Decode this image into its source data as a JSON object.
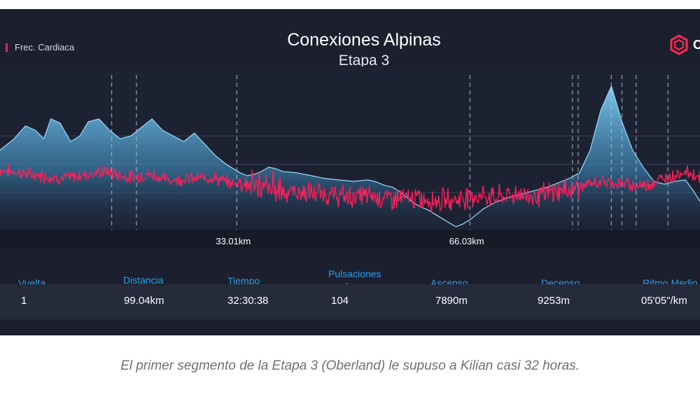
{
  "chart_data": {
    "type": "area",
    "title": "Conexiones Alpinas",
    "subtitle": "Etapa 3",
    "xlim": [
      0,
      99.04
    ],
    "x_tick_labels": [
      "33.01km",
      "66.03km"
    ],
    "grid": "horizontal",
    "legend_position": "top-left",
    "series": [
      {
        "name": "",
        "kind": "elevation-area",
        "x": [
          0,
          2,
          3.6,
          5,
          6.2,
          7.2,
          8.5,
          10,
          11.3,
          12.5,
          14,
          15.5,
          17,
          18.5,
          20,
          21.5,
          23,
          24.5,
          26,
          27.5,
          29,
          30.5,
          32,
          33,
          34,
          35,
          36,
          37,
          38,
          39,
          40,
          42,
          44,
          46,
          48,
          50,
          52,
          53,
          54.5,
          55.5,
          56.5,
          57.5,
          58.5,
          59.5,
          60.5,
          61.5,
          62.5,
          63.5,
          64.5,
          65.5,
          66.5,
          67.5,
          68.5,
          70,
          71.5,
          73,
          74.5,
          76,
          77.5,
          79,
          80.5,
          82,
          83.5,
          85,
          86.5,
          88,
          89.5,
          91,
          92.5,
          94,
          95.5,
          97,
          98,
          99.04
        ],
        "values": [
          0.5,
          0.58,
          0.67,
          0.64,
          0.58,
          0.72,
          0.69,
          0.56,
          0.6,
          0.7,
          0.72,
          0.64,
          0.58,
          0.6,
          0.66,
          0.72,
          0.64,
          0.6,
          0.56,
          0.62,
          0.54,
          0.46,
          0.4,
          0.37,
          0.34,
          0.32,
          0.33,
          0.35,
          0.38,
          0.37,
          0.35,
          0.34,
          0.32,
          0.3,
          0.29,
          0.28,
          0.29,
          0.28,
          0.25,
          0.24,
          0.21,
          0.17,
          0.13,
          0.1,
          0.08,
          0.05,
          0.02,
          -0.01,
          -0.04,
          -0.02,
          0.01,
          0.05,
          0.09,
          0.13,
          0.16,
          0.18,
          0.2,
          0.22,
          0.24,
          0.27,
          0.3,
          0.34,
          0.5,
          0.78,
          0.95,
          0.7,
          0.5,
          0.38,
          0.28,
          0.26,
          0.28,
          0.29,
          0.22,
          0.14
        ]
      },
      {
        "name": "Frec. Cardiaca",
        "kind": "heart-rate-line",
        "color": "#ff1f5a",
        "x": [
          0,
          3,
          6,
          9,
          12,
          15,
          18,
          21,
          24,
          27,
          30,
          33,
          34,
          36,
          38,
          40,
          43,
          46,
          49,
          52,
          55,
          58,
          61,
          64,
          67,
          70,
          73,
          76,
          79,
          82,
          85,
          88,
          91,
          94,
          97,
          99.04
        ],
        "values": [
          0.36,
          0.34,
          0.32,
          0.3,
          0.33,
          0.35,
          0.31,
          0.33,
          0.29,
          0.3,
          0.31,
          0.26,
          0.28,
          0.24,
          0.22,
          0.21,
          0.2,
          0.19,
          0.17,
          0.18,
          0.16,
          0.16,
          0.15,
          0.15,
          0.18,
          0.17,
          0.19,
          0.18,
          0.21,
          0.24,
          0.28,
          0.26,
          0.25,
          0.3,
          0.35,
          0.31
        ]
      }
    ]
  },
  "chart": {
    "x_ticks": [
      {
        "label": "33.01km",
        "x": 33.01
      },
      {
        "label": "66.03km",
        "x": 66.03
      }
    ],
    "lap_markers": [
      15.8,
      19.3,
      33.5,
      66.5,
      81.0,
      81.8,
      86.5,
      88.0,
      90.0,
      94.5
    ]
  },
  "legend": {
    "label": "Frec. Cardiaca"
  },
  "logo": {
    "text": "C",
    "icon": "hexagon-logo-icon",
    "color": "#ff2a4d"
  },
  "table": {
    "headers": {
      "vuelta": "Vuelta",
      "distancia": "Distancia",
      "tiempo": "Tiempo",
      "pulsaciones_1": "Pulsaciones",
      "pulsaciones_2": "medias",
      "ascenso": "Ascenso",
      "decenso": "Decenso",
      "ritmo": "Ritmo Medio"
    },
    "row": {
      "vuelta": "1",
      "distancia": "99.04km",
      "tiempo": "32:30:38",
      "pulsaciones": "104",
      "ascenso": "7890m",
      "decenso": "9253m",
      "ritmo": "05'05\"/km"
    }
  },
  "caption": "El primer segmento de la Etapa 3 (Oberland) le supuso a Kilian casi 32 horas.",
  "colors": {
    "background": "#1b1f2e",
    "heart_rate": "#ff1f5a",
    "area_top": "#7fd0f8",
    "header_text": "#2f9fe8"
  }
}
